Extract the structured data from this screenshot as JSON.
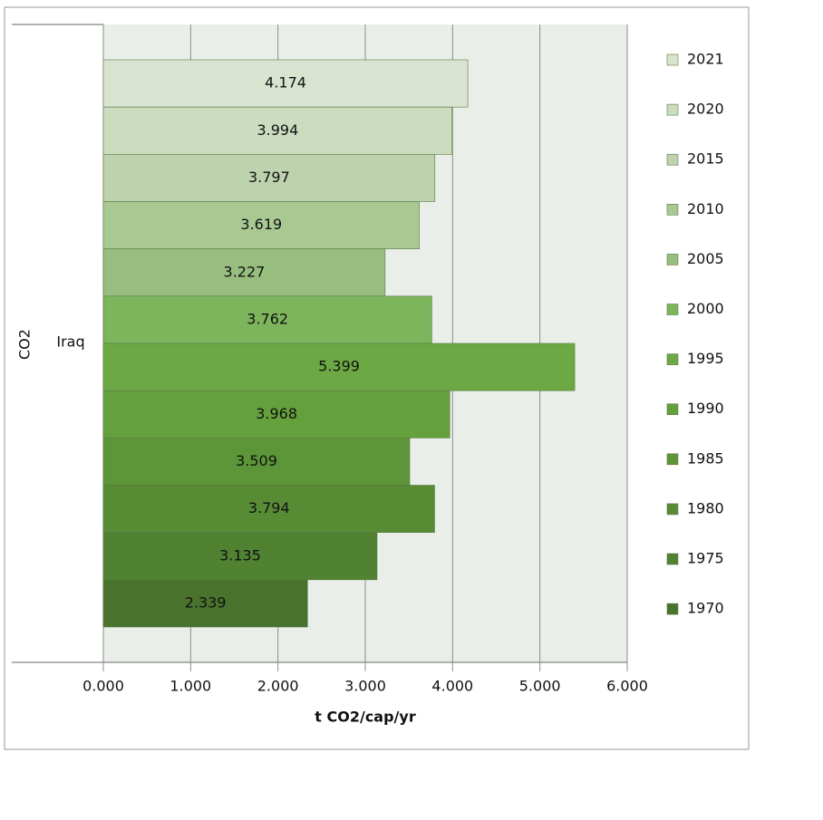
{
  "chart_data": {
    "type": "bar",
    "orientation": "horizontal",
    "group_label": "CO2",
    "categories": [
      "Iraq"
    ],
    "x_label": "t CO2/cap/yr",
    "xlim": [
      0,
      6
    ],
    "xticks": [
      {
        "value": 0,
        "label": "0.000"
      },
      {
        "value": 1,
        "label": "1.000"
      },
      {
        "value": 2,
        "label": "2.000"
      },
      {
        "value": 3,
        "label": "3.000"
      },
      {
        "value": 4,
        "label": "4.000"
      },
      {
        "value": 5,
        "label": "5.000"
      },
      {
        "value": 6,
        "label": "6.000"
      }
    ],
    "grid": true,
    "legend": "right",
    "series": [
      {
        "name": "2021",
        "color": "#d9e4d0",
        "values": [
          4.174
        ]
      },
      {
        "name": "2020",
        "color": "#cbdcbf",
        "values": [
          3.994
        ]
      },
      {
        "name": "2015",
        "color": "#bdd3ae",
        "values": [
          3.797
        ]
      },
      {
        "name": "2010",
        "color": "#a9c993",
        "values": [
          3.619
        ]
      },
      {
        "name": "2005",
        "color": "#97be7f",
        "values": [
          3.227
        ]
      },
      {
        "name": "2000",
        "color": "#7db55d",
        "values": [
          3.762
        ]
      },
      {
        "name": "1995",
        "color": "#6ca843",
        "values": [
          5.399
        ]
      },
      {
        "name": "1990",
        "color": "#64a03c",
        "values": [
          3.968
        ]
      },
      {
        "name": "1985",
        "color": "#5d9638",
        "values": [
          3.509
        ]
      },
      {
        "name": "1980",
        "color": "#578c35",
        "values": [
          3.794
        ]
      },
      {
        "name": "1975",
        "color": "#508232",
        "values": [
          3.135
        ]
      },
      {
        "name": "1970",
        "color": "#49732d",
        "values": [
          2.339
        ]
      }
    ]
  }
}
